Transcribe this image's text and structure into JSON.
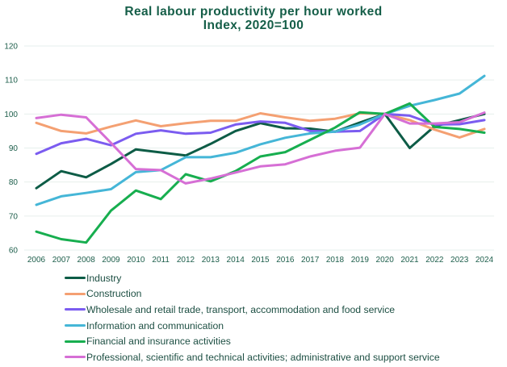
{
  "chart_data": {
    "type": "line",
    "title": "Real labour productivity per hour worked",
    "subtitle": "Index, 2020=100",
    "xlabel": "",
    "ylabel": "",
    "ylim": [
      60,
      120
    ],
    "yticks": [
      60,
      70,
      80,
      90,
      100,
      110,
      120
    ],
    "grid": true,
    "legend_position": "bottom",
    "x": [
      "2006",
      "2007",
      "2008",
      "2009",
      "2010",
      "2011",
      "2012",
      "2013",
      "2014",
      "2015",
      "2016",
      "2017",
      "2018",
      "2019",
      "2020",
      "2021",
      "2022",
      "2023",
      "2024"
    ],
    "series": [
      {
        "name": "Industry",
        "color": "#0d5c46",
        "values": [
          78.2,
          83.2,
          81.4,
          85.3,
          89.6,
          88.7,
          87.8,
          91.2,
          95.0,
          97.3,
          95.8,
          95.7,
          94.8,
          97.5,
          100,
          90.0,
          96.4,
          98.2,
          100.0
        ]
      },
      {
        "name": "Construction",
        "color": "#f4a072",
        "values": [
          97.4,
          95.0,
          94.3,
          96.3,
          98.1,
          96.4,
          97.3,
          98.0,
          98.0,
          100.2,
          99.0,
          98.0,
          98.6,
          100.2,
          100,
          98.2,
          95.4,
          93.1,
          95.6
        ]
      },
      {
        "name": "Wholesale and retail trade, transport, accommodation and food service",
        "color": "#7b5cf0",
        "values": [
          88.3,
          91.4,
          92.7,
          90.8,
          94.2,
          95.2,
          94.2,
          94.5,
          96.9,
          97.8,
          97.4,
          95.0,
          94.8,
          95.0,
          100,
          99.5,
          96.9,
          97.0,
          98.2
        ]
      },
      {
        "name": "Information and communication",
        "color": "#45b6d7",
        "values": [
          73.3,
          75.8,
          76.8,
          77.9,
          82.9,
          83.5,
          87.3,
          87.3,
          88.6,
          91.1,
          93.0,
          94.3,
          94.8,
          96.9,
          100,
          102.4,
          104.1,
          106.0,
          111.2
        ]
      },
      {
        "name": "Financial and insurance activities",
        "color": "#17ae4f",
        "values": [
          65.4,
          63.2,
          62.2,
          71.6,
          77.5,
          75.0,
          82.3,
          80.2,
          83.2,
          87.5,
          88.8,
          92.4,
          96.0,
          100.5,
          100,
          103.1,
          96.2,
          95.6,
          94.5
        ]
      },
      {
        "name": "Professional, scientific and technical activities; administrative and support service",
        "color": "#d66fd5",
        "values": [
          98.8,
          99.8,
          99.0,
          91.5,
          83.8,
          83.5,
          79.6,
          81.0,
          82.8,
          84.6,
          85.2,
          87.5,
          89.2,
          90.1,
          100,
          97.2,
          97.2,
          97.6,
          100.4
        ]
      }
    ]
  }
}
